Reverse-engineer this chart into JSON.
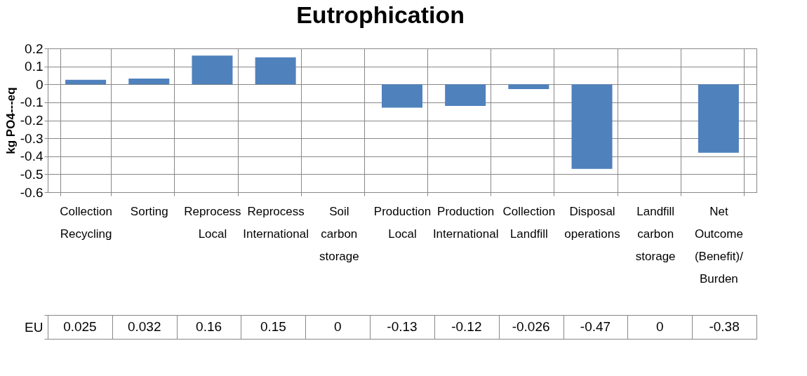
{
  "chart_data": {
    "type": "bar",
    "title": "Eutrophication",
    "ylabel": "kg PO4---eq",
    "categories": [
      "Collection Recycling",
      "Sorting",
      "Reprocess Local",
      "Reprocess International",
      "Soil carbon storage",
      "Production Local",
      "Production International",
      "Collection Landfill",
      "Disposal operations",
      "Landfill carbon storage",
      "Net Outcome (Benefit)/ Burden"
    ],
    "series": [
      {
        "name": "EU",
        "color": "#4f81bd",
        "values": [
          0.025,
          0.032,
          0.16,
          0.15,
          0,
          -0.13,
          -0.12,
          -0.026,
          -0.47,
          0,
          -0.38
        ]
      }
    ],
    "ylim": [
      -0.6,
      0.2
    ],
    "yticks": [
      -0.6,
      -0.5,
      -0.4,
      -0.3,
      -0.2,
      -0.1,
      0,
      0.1,
      0.2
    ],
    "grid": true,
    "legend": false,
    "data_labels": true
  }
}
